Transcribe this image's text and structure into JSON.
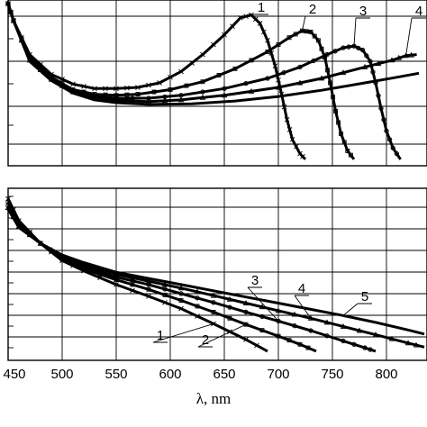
{
  "chart_data": [
    {
      "type": "line",
      "panel": "top",
      "xlim": [
        450,
        830
      ],
      "x_ticks": [
        450,
        500,
        550,
        600,
        650,
        700,
        750,
        800
      ],
      "grid": true,
      "series": [
        {
          "name": "1",
          "points": [
            [
              450,
              1.2
            ],
            [
              455,
              0.9
            ],
            [
              470,
              0.3
            ],
            [
              490,
              -0.05
            ],
            [
              510,
              -0.22
            ],
            [
              530,
              -0.3
            ],
            [
              550,
              -0.3
            ],
            [
              570,
              -0.28
            ],
            [
              590,
              -0.2
            ],
            [
              610,
              0.0
            ],
            [
              630,
              0.3
            ],
            [
              650,
              0.65
            ],
            [
              665,
              0.95
            ],
            [
              675,
              1.0
            ],
            [
              683,
              0.85
            ],
            [
              690,
              0.55
            ],
            [
              697,
              0.1
            ],
            [
              703,
              -0.4
            ],
            [
              708,
              -0.85
            ],
            [
              713,
              -1.2
            ],
            [
              720,
              -1.45
            ],
            [
              725,
              -1.55
            ]
          ]
        },
        {
          "name": "2",
          "points": [
            [
              450,
              1.2
            ],
            [
              455,
              0.9
            ],
            [
              470,
              0.25
            ],
            [
              490,
              -0.1
            ],
            [
              510,
              -0.32
            ],
            [
              530,
              -0.4
            ],
            [
              550,
              -0.42
            ],
            [
              570,
              -0.4
            ],
            [
              600,
              -0.32
            ],
            [
              630,
              -0.18
            ],
            [
              660,
              0.05
            ],
            [
              690,
              0.35
            ],
            [
              710,
              0.6
            ],
            [
              722,
              0.72
            ],
            [
              730,
              0.7
            ],
            [
              737,
              0.55
            ],
            [
              743,
              0.25
            ],
            [
              748,
              -0.2
            ],
            [
              753,
              -0.7
            ],
            [
              758,
              -1.1
            ],
            [
              764,
              -1.4
            ],
            [
              770,
              -1.55
            ]
          ]
        },
        {
          "name": "3",
          "points": [
            [
              450,
              1.2
            ],
            [
              455,
              0.9
            ],
            [
              470,
              0.22
            ],
            [
              490,
              -0.12
            ],
            [
              510,
              -0.34
            ],
            [
              530,
              -0.44
            ],
            [
              550,
              -0.47
            ],
            [
              580,
              -0.47
            ],
            [
              610,
              -0.42
            ],
            [
              650,
              -0.3
            ],
            [
              690,
              -0.12
            ],
            [
              720,
              0.08
            ],
            [
              745,
              0.3
            ],
            [
              760,
              0.42
            ],
            [
              770,
              0.45
            ],
            [
              778,
              0.38
            ],
            [
              785,
              0.18
            ],
            [
              790,
              -0.2
            ],
            [
              795,
              -0.65
            ],
            [
              800,
              -1.05
            ],
            [
              806,
              -1.35
            ],
            [
              813,
              -1.55
            ]
          ]
        },
        {
          "name": "4",
          "points": [
            [
              450,
              1.2
            ],
            [
              455,
              0.9
            ],
            [
              470,
              0.2
            ],
            [
              490,
              -0.14
            ],
            [
              510,
              -0.36
            ],
            [
              530,
              -0.47
            ],
            [
              550,
              -0.51
            ],
            [
              580,
              -0.53
            ],
            [
              610,
              -0.5
            ],
            [
              650,
              -0.42
            ],
            [
              700,
              -0.28
            ],
            [
              740,
              -0.12
            ],
            [
              780,
              0.08
            ],
            [
              805,
              0.2
            ],
            [
              818,
              0.28
            ],
            [
              828,
              0.3
            ]
          ]
        },
        {
          "name": "5",
          "points": [
            [
              450,
              1.2
            ],
            [
              455,
              0.9
            ],
            [
              470,
              0.18
            ],
            [
              490,
              -0.16
            ],
            [
              510,
              -0.38
            ],
            [
              530,
              -0.5
            ],
            [
              550,
              -0.55
            ],
            [
              580,
              -0.58
            ],
            [
              620,
              -0.57
            ],
            [
              660,
              -0.52
            ],
            [
              700,
              -0.44
            ],
            [
              740,
              -0.33
            ],
            [
              780,
              -0.2
            ],
            [
              810,
              -0.1
            ],
            [
              830,
              -0.03
            ]
          ]
        }
      ],
      "labels": [
        "1",
        "2",
        "3",
        "4"
      ]
    },
    {
      "type": "line",
      "panel": "bottom",
      "xlim": [
        450,
        830
      ],
      "x_ticks": [
        450,
        500,
        550,
        600,
        650,
        700,
        750,
        800
      ],
      "xlabel": "λ, nm",
      "grid": true,
      "series": [
        {
          "name": "1",
          "points": [
            [
              450,
              1.1
            ],
            [
              460,
              0.78
            ],
            [
              480,
              0.45
            ],
            [
              500,
              0.2
            ],
            [
              520,
              0.05
            ],
            [
              550,
              -0.15
            ],
            [
              580,
              -0.32
            ],
            [
              610,
              -0.5
            ],
            [
              640,
              -0.72
            ],
            [
              670,
              -0.95
            ],
            [
              690,
              -1.12
            ]
          ]
        },
        {
          "name": "2",
          "points": [
            [
              450,
              1.05
            ],
            [
              460,
              0.75
            ],
            [
              480,
              0.45
            ],
            [
              500,
              0.22
            ],
            [
              520,
              0.08
            ],
            [
              550,
              -0.08
            ],
            [
              580,
              -0.22
            ],
            [
              610,
              -0.38
            ],
            [
              640,
              -0.55
            ],
            [
              670,
              -0.73
            ],
            [
              700,
              -0.9
            ],
            [
              720,
              -1.02
            ],
            [
              735,
              -1.12
            ]
          ]
        },
        {
          "name": "3",
          "points": [
            [
              450,
              1.0
            ],
            [
              460,
              0.72
            ],
            [
              480,
              0.45
            ],
            [
              500,
              0.24
            ],
            [
              520,
              0.11
            ],
            [
              550,
              -0.04
            ],
            [
              580,
              -0.15
            ],
            [
              610,
              -0.28
            ],
            [
              640,
              -0.41
            ],
            [
              670,
              -0.55
            ],
            [
              700,
              -0.68
            ],
            [
              730,
              -0.82
            ],
            [
              760,
              -0.97
            ],
            [
              780,
              -1.07
            ],
            [
              790,
              -1.12
            ]
          ]
        },
        {
          "name": "4",
          "points": [
            [
              450,
              0.97
            ],
            [
              460,
              0.7
            ],
            [
              480,
              0.45
            ],
            [
              500,
              0.26
            ],
            [
              520,
              0.14
            ],
            [
              550,
              0.0
            ],
            [
              580,
              -0.1
            ],
            [
              610,
              -0.2
            ],
            [
              640,
              -0.31
            ],
            [
              670,
              -0.42
            ],
            [
              700,
              -0.53
            ],
            [
              730,
              -0.64
            ],
            [
              760,
              -0.76
            ],
            [
              790,
              -0.88
            ],
            [
              820,
              -1.0
            ],
            [
              835,
              -1.06
            ]
          ]
        },
        {
          "name": "5",
          "points": [
            [
              450,
              0.95
            ],
            [
              460,
              0.68
            ],
            [
              480,
              0.45
            ],
            [
              500,
              0.28
            ],
            [
              520,
              0.17
            ],
            [
              550,
              0.03
            ],
            [
              580,
              -0.06
            ],
            [
              610,
              -0.15
            ],
            [
              640,
              -0.24
            ],
            [
              670,
              -0.33
            ],
            [
              700,
              -0.42
            ],
            [
              730,
              -0.51
            ],
            [
              760,
              -0.6
            ],
            [
              790,
              -0.7
            ],
            [
              820,
              -0.81
            ],
            [
              835,
              -0.87
            ]
          ]
        }
      ],
      "labels": [
        "1",
        "2",
        "3",
        "4",
        "5"
      ]
    }
  ]
}
